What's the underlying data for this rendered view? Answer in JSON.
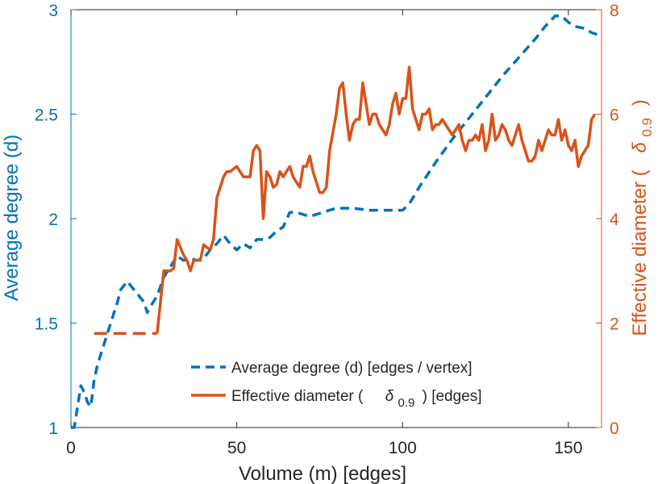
{
  "chart_data": {
    "type": "line",
    "xlabel": "Volume (m) [edges]",
    "ylabel_left": "Average degree (d)",
    "ylabel_right_prefix": "Effective diameter (",
    "ylabel_right_symbol": "δ",
    "ylabel_right_subscript": "0.9",
    "ylabel_right_suffix": ")",
    "xlim": [
      0,
      160
    ],
    "ylim_left": [
      1,
      3
    ],
    "ylim_right": [
      0,
      8
    ],
    "x_ticks": [
      0,
      50,
      100,
      150
    ],
    "x_tick_labels": [
      "0",
      "50",
      "100",
      "150"
    ],
    "left_ticks": [
      1,
      1.5,
      2,
      2.5,
      3
    ],
    "left_tick_labels": [
      "1",
      "1.5",
      "2",
      "2.5",
      "3"
    ],
    "right_ticks": [
      0,
      2,
      4,
      6,
      8
    ],
    "right_tick_labels": [
      "0",
      "2",
      "4",
      "6",
      "8"
    ],
    "colors": {
      "left": "#0072BD",
      "right": "#D95319",
      "text": "#262626"
    },
    "legend": {
      "position": "bottom-right",
      "entries": [
        {
          "label": "Average degree (d) [edges / vertex]"
        },
        {
          "label_prefix": "Effective diameter (",
          "symbol": "δ",
          "subscript": "0.9",
          "label_suffix": ") [edges]"
        }
      ]
    },
    "series": [
      {
        "name": "Average degree (d) [edges / vertex]",
        "axis": "left",
        "style": "dashed",
        "points": [
          [
            0,
            1
          ],
          [
            1,
            1
          ],
          [
            2,
            1.1
          ],
          [
            3,
            1.2
          ],
          [
            4,
            1.17
          ],
          [
            5,
            1.12
          ],
          [
            6,
            1.1
          ],
          [
            7,
            1.23
          ],
          [
            8,
            1.3
          ],
          [
            10,
            1.4
          ],
          [
            12,
            1.5
          ],
          [
            14,
            1.6
          ],
          [
            15,
            1.66
          ],
          [
            16,
            1.68
          ],
          [
            17,
            1.7
          ],
          [
            18,
            1.68
          ],
          [
            20,
            1.64
          ],
          [
            22,
            1.6
          ],
          [
            23,
            1.55
          ],
          [
            24,
            1.58
          ],
          [
            26,
            1.63
          ],
          [
            28,
            1.72
          ],
          [
            30,
            1.77
          ],
          [
            32,
            1.82
          ],
          [
            34,
            1.8
          ],
          [
            36,
            1.81
          ],
          [
            38,
            1.8
          ],
          [
            40,
            1.81
          ],
          [
            42,
            1.85
          ],
          [
            44,
            1.88
          ],
          [
            46,
            1.92
          ],
          [
            48,
            1.88
          ],
          [
            50,
            1.85
          ],
          [
            52,
            1.88
          ],
          [
            54,
            1.86
          ],
          [
            56,
            1.9
          ],
          [
            58,
            1.9
          ],
          [
            60,
            1.91
          ],
          [
            62,
            1.94
          ],
          [
            64,
            1.96
          ],
          [
            66,
            2.03
          ],
          [
            68,
            2.03
          ],
          [
            70,
            2.02
          ],
          [
            72,
            2.01
          ],
          [
            74,
            2.02
          ],
          [
            76,
            2.03
          ],
          [
            78,
            2.04
          ],
          [
            80,
            2.05
          ],
          [
            85,
            2.05
          ],
          [
            90,
            2.04
          ],
          [
            95,
            2.04
          ],
          [
            100,
            2.04
          ],
          [
            102,
            2.07
          ],
          [
            105,
            2.15
          ],
          [
            110,
            2.27
          ],
          [
            115,
            2.38
          ],
          [
            120,
            2.48
          ],
          [
            125,
            2.58
          ],
          [
            130,
            2.68
          ],
          [
            135,
            2.77
          ],
          [
            140,
            2.86
          ],
          [
            143,
            2.92
          ],
          [
            146,
            2.97
          ],
          [
            148,
            2.97
          ],
          [
            150,
            2.94
          ],
          [
            152,
            2.92
          ],
          [
            155,
            2.91
          ],
          [
            157,
            2.89
          ],
          [
            159,
            2.88
          ]
        ]
      },
      {
        "name": "Effective diameter (δ0.9) [edges]",
        "axis": "right",
        "style": "dashed-short",
        "points": [
          [
            7,
            1.8
          ],
          [
            23,
            1.8
          ],
          [
            26,
            1.8
          ]
        ]
      },
      {
        "name": "Effective diameter (δ0.9) [edges]",
        "axis": "right",
        "style": "solid",
        "points": [
          [
            26,
            1.8
          ],
          [
            28,
            3.0
          ],
          [
            30,
            3.0
          ],
          [
            31,
            3.05
          ],
          [
            32,
            3.6
          ],
          [
            34,
            3.3
          ],
          [
            35,
            3.2
          ],
          [
            36,
            3.0
          ],
          [
            37,
            3.2
          ],
          [
            38,
            3.2
          ],
          [
            39,
            3.2
          ],
          [
            40,
            3.5
          ],
          [
            42,
            3.4
          ],
          [
            43,
            3.6
          ],
          [
            44,
            4.4
          ],
          [
            45,
            4.6
          ],
          [
            46,
            4.8
          ],
          [
            47,
            4.9
          ],
          [
            48,
            4.9
          ],
          [
            50,
            5.0
          ],
          [
            51,
            4.9
          ],
          [
            52,
            4.8
          ],
          [
            54,
            4.8
          ],
          [
            55,
            5.3
          ],
          [
            56,
            5.4
          ],
          [
            57,
            5.3
          ],
          [
            58,
            4.0
          ],
          [
            59,
            4.9
          ],
          [
            60,
            4.8
          ],
          [
            61,
            4.6
          ],
          [
            62,
            4.65
          ],
          [
            63,
            4.9
          ],
          [
            64,
            4.8
          ],
          [
            65,
            4.9
          ],
          [
            66,
            5.0
          ],
          [
            67,
            4.8
          ],
          [
            68,
            4.7
          ],
          [
            69,
            4.6
          ],
          [
            70,
            5.0
          ],
          [
            71,
            5.0
          ],
          [
            72,
            5.2
          ],
          [
            73,
            4.9
          ],
          [
            74,
            4.7
          ],
          [
            75,
            4.5
          ],
          [
            76,
            4.5
          ],
          [
            77,
            4.6
          ],
          [
            78,
            5.3
          ],
          [
            80,
            6.0
          ],
          [
            81,
            6.5
          ],
          [
            82,
            6.6
          ],
          [
            83,
            6.0
          ],
          [
            84,
            5.5
          ],
          [
            85,
            5.8
          ],
          [
            86,
            5.9
          ],
          [
            87,
            5.9
          ],
          [
            88,
            6.6
          ],
          [
            89,
            6.2
          ],
          [
            90,
            5.8
          ],
          [
            91,
            6.0
          ],
          [
            92,
            6.0
          ],
          [
            93,
            5.8
          ],
          [
            94,
            5.7
          ],
          [
            95,
            5.6
          ],
          [
            96,
            5.8
          ],
          [
            97,
            6.2
          ],
          [
            98,
            6.4
          ],
          [
            99,
            6.0
          ],
          [
            100,
            6.3
          ],
          [
            101,
            6.3
          ],
          [
            102,
            6.9
          ],
          [
            103,
            6.1
          ],
          [
            104,
            5.9
          ],
          [
            105,
            5.7
          ],
          [
            106,
            6.0
          ],
          [
            107,
            6.0
          ],
          [
            108,
            6.1
          ],
          [
            109,
            5.7
          ],
          [
            110,
            5.8
          ],
          [
            111,
            5.8
          ],
          [
            112,
            5.9
          ],
          [
            114,
            5.7
          ],
          [
            115,
            5.6
          ],
          [
            116,
            5.7
          ],
          [
            117,
            5.8
          ],
          [
            118,
            5.5
          ],
          [
            119,
            5.3
          ],
          [
            120,
            5.5
          ],
          [
            121,
            5.5
          ],
          [
            122,
            5.6
          ],
          [
            123,
            5.5
          ],
          [
            124,
            5.8
          ],
          [
            125,
            5.3
          ],
          [
            126,
            5.5
          ],
          [
            127,
            6.0
          ],
          [
            128,
            5.5
          ],
          [
            129,
            5.6
          ],
          [
            130,
            5.8
          ],
          [
            131,
            5.7
          ],
          [
            132,
            5.5
          ],
          [
            133,
            5.4
          ],
          [
            134,
            5.6
          ],
          [
            135,
            5.8
          ],
          [
            136,
            5.5
          ],
          [
            137,
            5.3
          ],
          [
            138,
            5.1
          ],
          [
            139,
            5.1
          ],
          [
            140,
            5.2
          ],
          [
            141,
            5.5
          ],
          [
            142,
            5.3
          ],
          [
            143,
            5.5
          ],
          [
            144,
            5.7
          ],
          [
            145,
            5.6
          ],
          [
            146,
            5.6
          ],
          [
            147,
            5.9
          ],
          [
            148,
            5.5
          ],
          [
            149,
            5.7
          ],
          [
            150,
            5.4
          ],
          [
            151,
            5.3
          ],
          [
            152,
            5.5
          ],
          [
            153,
            5.0
          ],
          [
            154,
            5.2
          ],
          [
            155,
            5.3
          ],
          [
            156,
            5.4
          ],
          [
            157,
            5.9
          ],
          [
            158,
            6.0
          ]
        ]
      }
    ]
  }
}
